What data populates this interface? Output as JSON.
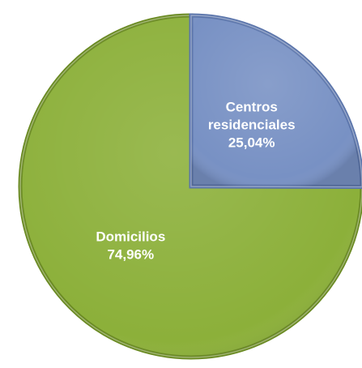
{
  "chart_data": {
    "type": "pie",
    "categories": [
      [
        "Domicilios"
      ],
      [
        "Centros",
        "residenciales"
      ]
    ],
    "values": [
      74.96,
      25.04
    ],
    "value_labels": [
      "74,96%",
      "25,04%"
    ],
    "colors": [
      "#8cb03a",
      "#7891c4"
    ],
    "edge_colors": [
      "#6a8a22",
      "#5b75ab"
    ],
    "start_angle": 0,
    "direction": "counterclockwise"
  }
}
